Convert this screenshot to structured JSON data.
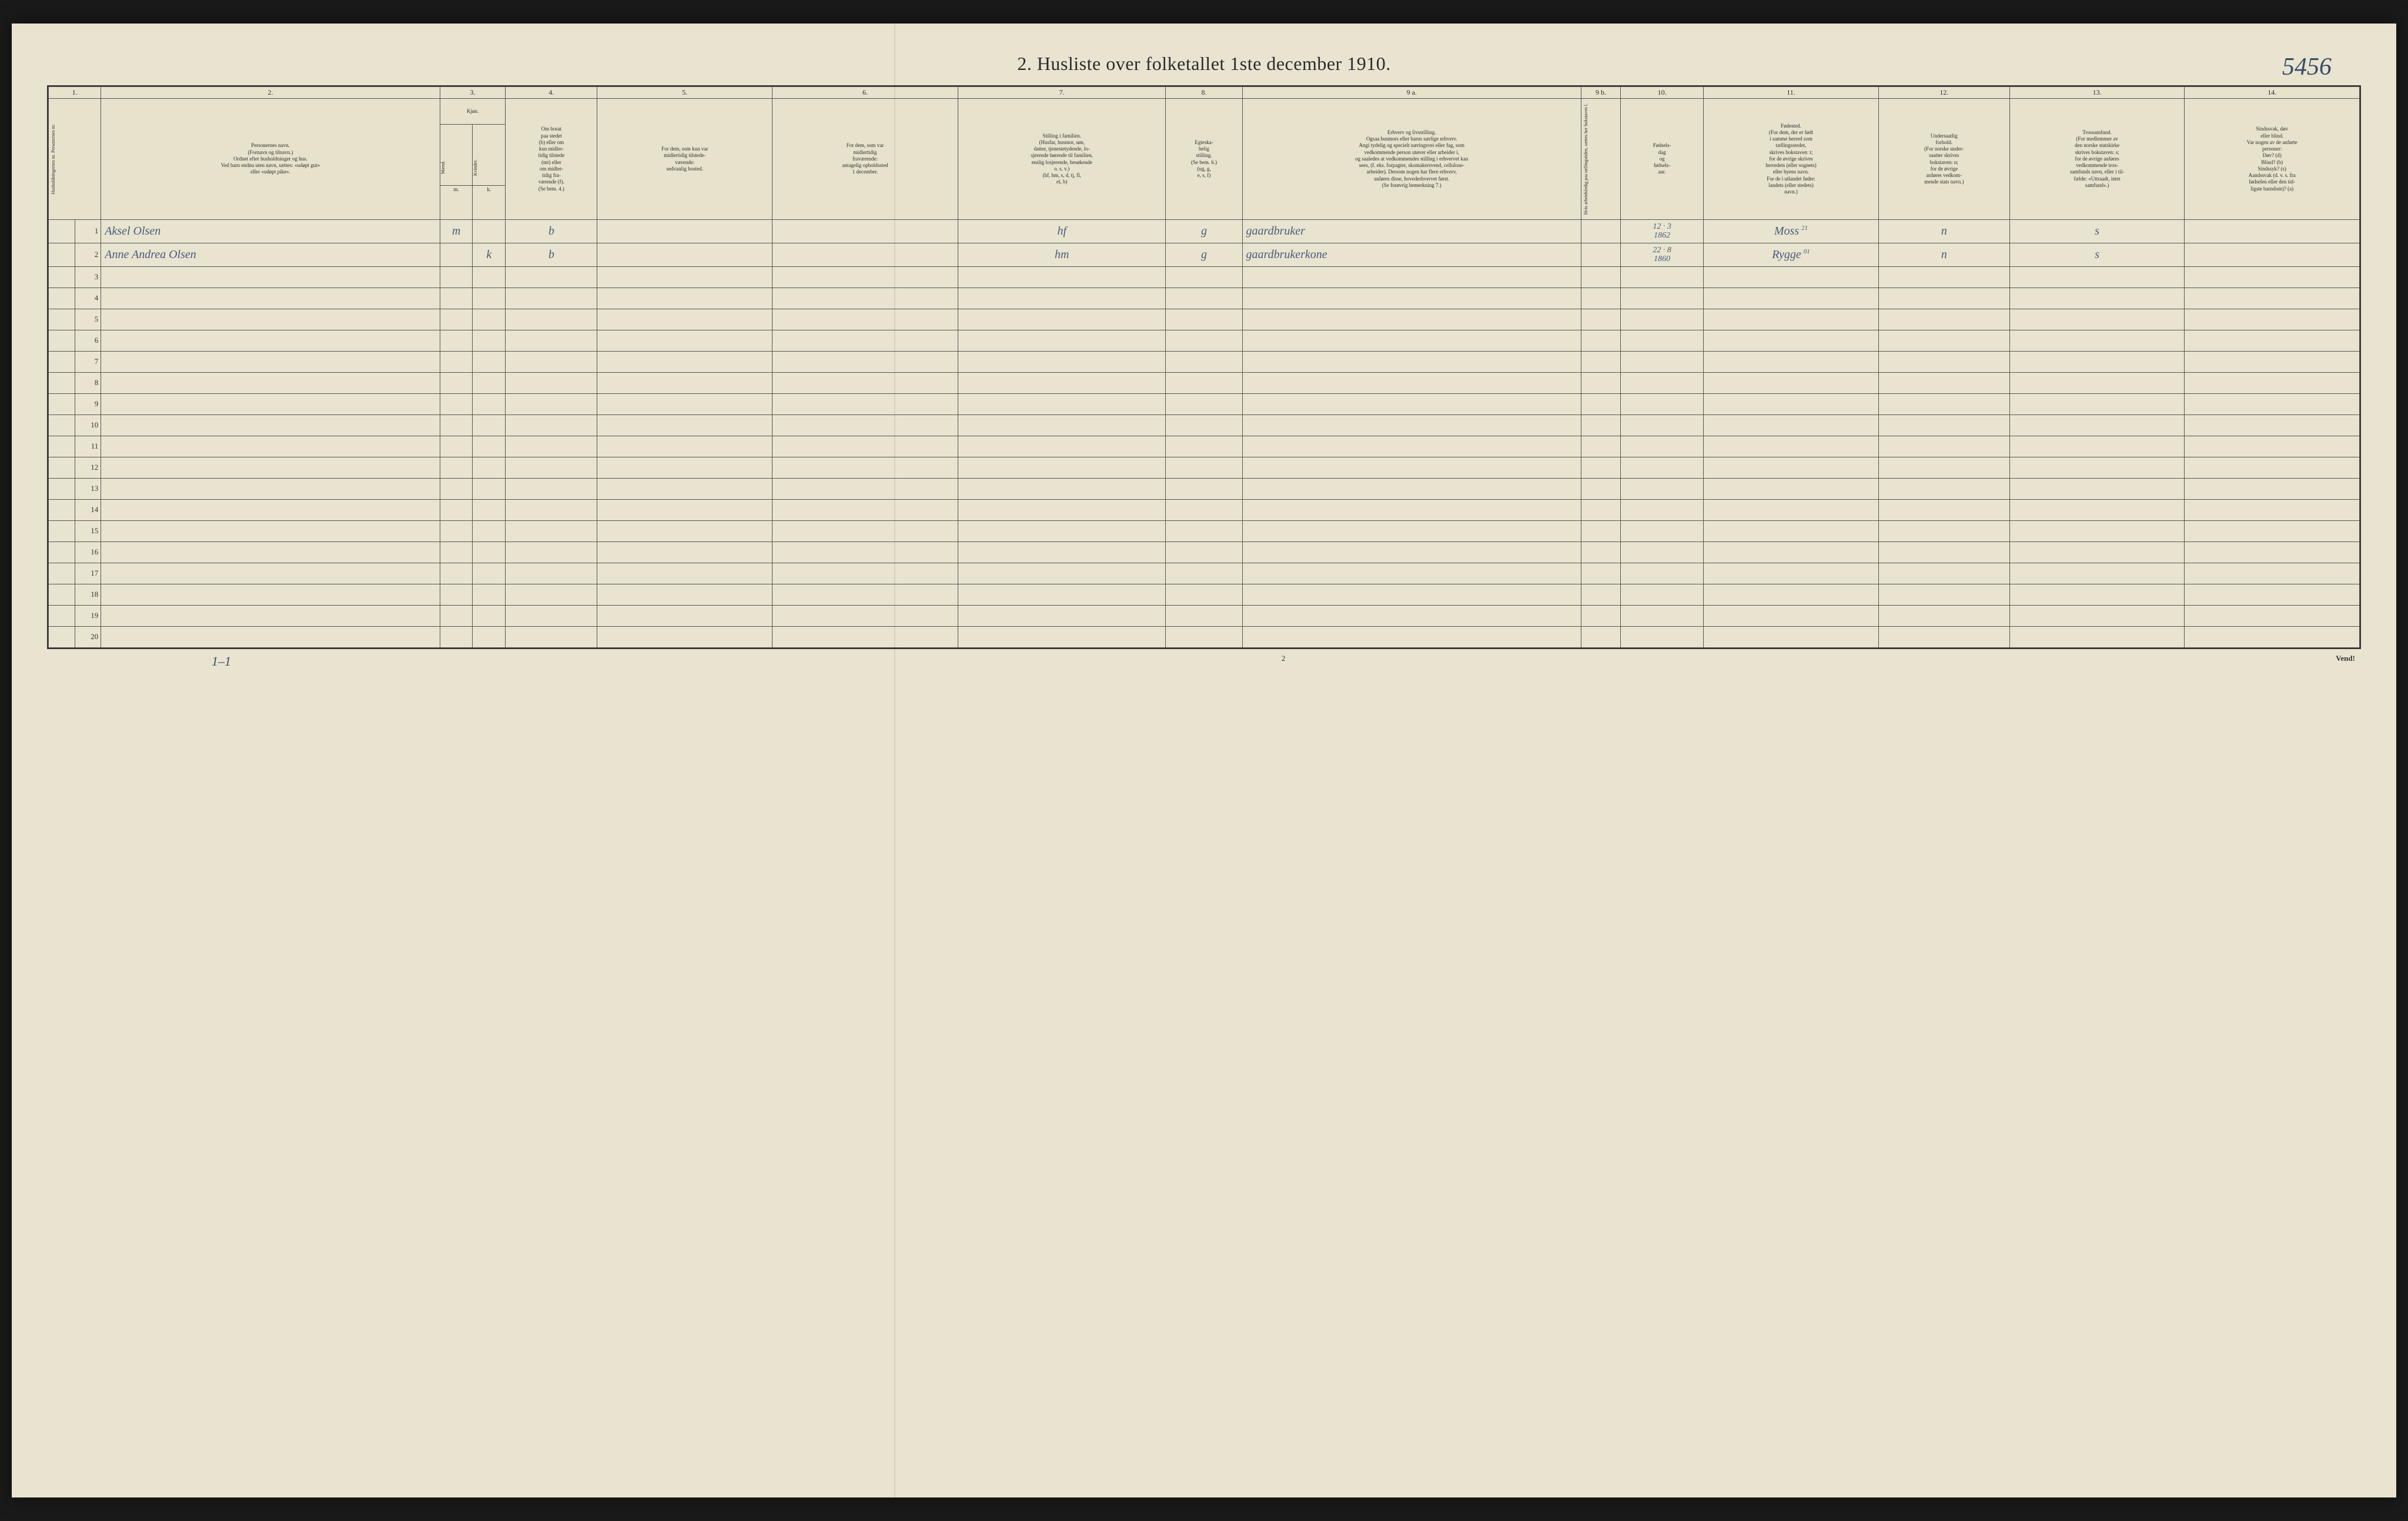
{
  "annotations": {
    "top_right": "5456",
    "bottom_tally": "1–1",
    "page_num": "2",
    "vend": "Vend!"
  },
  "title": "2.   Husliste over folketallet 1ste december 1910.",
  "columns": {
    "numbers": [
      "1.",
      "2.",
      "3.",
      "4.",
      "5.",
      "6.",
      "7.",
      "8.",
      "9 a.",
      "9 b.",
      "10.",
      "11.",
      "12.",
      "13.",
      "14."
    ],
    "col1": "Husholdningernes nr.\nPersonernes nr.",
    "col2": "Personernes navn.\n(Fornavn og tilnavn.)\nOrdnet efter husholdninger og hus.\nVed barn endnu uten navn, sættes: «udøpt gut»\neller «udøpt pike».",
    "col3": "Kjøn.",
    "col3_sub_m": "m.",
    "col3_sub_k": "k.",
    "col3_mand": "Mænd.",
    "col3_kvinder": "Kvinder.",
    "col4": "Om bosat\npaa stedet\n(b) eller om\nkun midler-\ntidig tilstede\n(mt) eller\nom midler-\ntidig fra-\nværende (f).\n(Se bem. 4.)",
    "col5": "For dem, som kun var\nmidlertidig tilstede-\nværende:\nsedvanlig bosted.",
    "col6": "For dem, som var\nmidlertidig\nfraværende:\nantagelig opholdssted\n1 december.",
    "col7": "Stilling i familien.\n(Husfar, husmor, søn,\ndatter, tjenestetydende, lo-\nsjerende hørende til familien,\nenslig losjerende, besøkende\no. s. v.)\n(hf, hm, s, d, tj, fl,\nel, b)",
    "col8": "Egteska-\nbelig\nstilling.\n(Se bem. 6.)\n(ug, g,\ne, s, f)",
    "col9a": "Erhverv og livsstilling.\nOgsaa husmors eller barns særlige erhverv.\nAngi tydelig og specielt næringsvei eller fag, som\nvedkommende person utøver eller arbeider i,\nog saaledes at vedkommendes stilling i erhvervet kan\nsees, (f. eks. forpagter, skomakersvend, cellulose-\narbeider). Dersom nogen har flere erhverv,\nanføres disse, hovederhvervet først.\n(Se forøvrig bemerkning 7.)",
    "col9b": "Hvis arbeidsledig\npaa tællingstiden, sættes\nher bokstaven l.",
    "col10": "Fødsels-\ndag\nog\nfødsels-\naar.",
    "col11": "Fødested.\n(For dem, der er født\ni samme herred som\ntællingsstedet,\nskrives bokstaven: t;\nfor de øvrige skrives\nherredets (eller sognets)\neller byens navn.\nFor de i utlandet fødte:\nlandets (eller stedets)\nnavn.)",
    "col12": "Undersaatlig\nforhold.\n(For norske under-\nsaatter skrives\nbokstaven: n;\nfor de øvrige\nanføres vedkom-\nmende stats navn.)",
    "col13": "Trossamfund.\n(For medlemmer av\nden norske statskirke\nskrives bokstaven: s;\nfor de øvrige anføres\nvedkommende tros-\nsamfunds navn, eller i til-\nfælde: «Uttraadt, intet\nsamfund».)",
    "col14": "Sindssvak, døv\neller blind.\nVar nogen av de anførte\npersoner:\nDøv?        (d)\nBlind?      (b)\nSindssyk? (s)\nAandssvak (d. v. s. fra\nfødselen eller den tid-\nligste barndom)?  (a)"
  },
  "widths": {
    "c1a": 1.2,
    "c1b": 1.2,
    "c2": 15.5,
    "c3m": 1.5,
    "c3k": 1.5,
    "c4": 4.2,
    "c5": 8.0,
    "c6": 8.5,
    "c7": 9.5,
    "c8": 3.5,
    "c9a": 15.5,
    "c9b": 1.8,
    "c10": 3.8,
    "c11": 8.0,
    "c12": 6.0,
    "c13": 8.0,
    "c14": 8.0
  },
  "row_count": 20,
  "entries": [
    {
      "num": "1",
      "name": "Aksel     Olsen",
      "sex_m": "m",
      "sex_k": "",
      "bosat": "b",
      "c5": "",
      "c6": "",
      "stilling": "hf",
      "egt": "g",
      "erhverv": "gaardbruker",
      "c9b": "",
      "fodsel": "12 · 3\n1862",
      "fodested": "Moss",
      "fodested_sup": "21",
      "under": "n",
      "tros": "s",
      "c14": ""
    },
    {
      "num": "2",
      "name": "Anne Andrea Olsen",
      "sex_m": "",
      "sex_k": "k",
      "bosat": "b",
      "c5": "",
      "c6": "",
      "stilling": "hm",
      "egt": "g",
      "erhverv": "gaardbrukerkone",
      "c9b": "",
      "fodsel": "22 · 8\n1860",
      "fodested": "Rygge",
      "fodested_sup": "01",
      "under": "n",
      "tros": "s",
      "c14": ""
    }
  ],
  "colors": {
    "paper": "#e8e4d0",
    "ink": "#2b2b2b",
    "rule": "#555555",
    "handwriting": "#4a5a7a",
    "background": "#1a1a1a"
  }
}
